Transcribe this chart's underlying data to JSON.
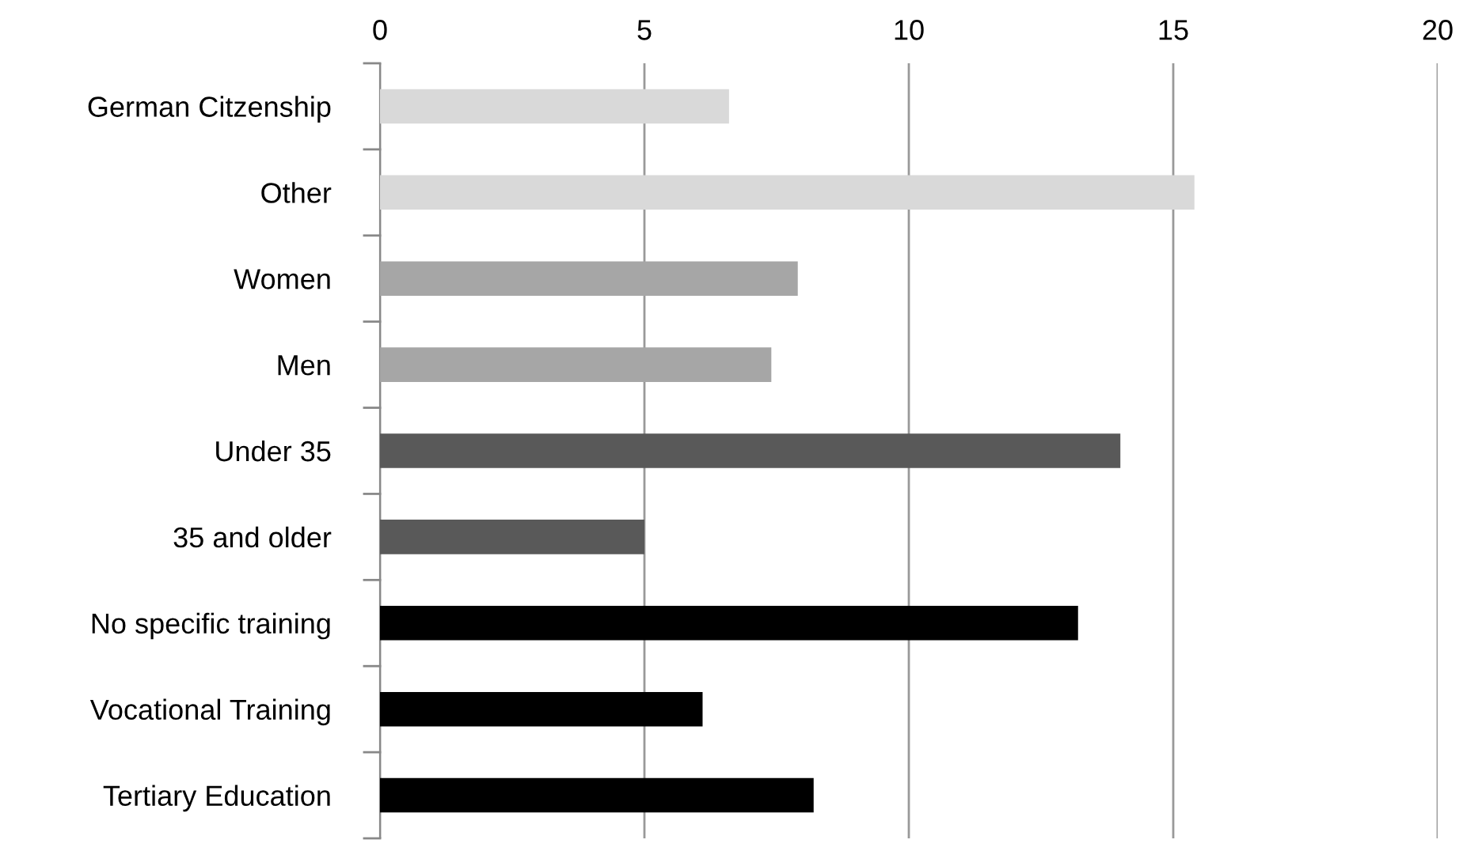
{
  "chart_data": {
    "type": "bar",
    "orientation": "horizontal",
    "categories": [
      "German Citzenship",
      "Other",
      "Women",
      "Men",
      "Under 35",
      "35 and older",
      "No specific training",
      "Vocational Training",
      "Tertiary Education"
    ],
    "values": [
      6.6,
      15.4,
      7.9,
      7.4,
      14.0,
      5.0,
      13.2,
      6.1,
      8.2
    ],
    "colors": [
      "#d9d9d9",
      "#d9d9d9",
      "#a6a6a6",
      "#a6a6a6",
      "#595959",
      "#595959",
      "#000000",
      "#000000",
      "#000000"
    ],
    "xlim": [
      0,
      20
    ],
    "xticks": [
      0,
      5,
      10,
      15,
      20
    ],
    "grid": "x",
    "legend": false
  }
}
